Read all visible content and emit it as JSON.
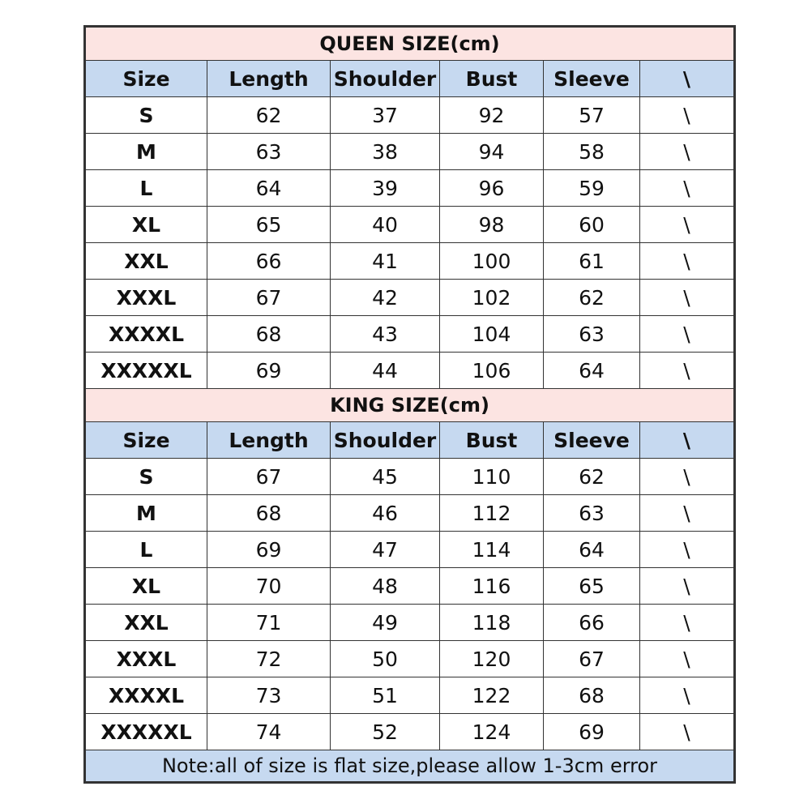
{
  "colors": {
    "title_bg": "#fce4e2",
    "header_bg": "#c6d9f0",
    "border": "#333333"
  },
  "columns": [
    "Size",
    "Length",
    "Shoulder",
    "Bust",
    "Sleeve",
    "\\"
  ],
  "sections": [
    {
      "title": "QUEEN SIZE(cm)",
      "rows": [
        [
          "S",
          "62",
          "37",
          "92",
          "57",
          "\\"
        ],
        [
          "M",
          "63",
          "38",
          "94",
          "58",
          "\\"
        ],
        [
          "L",
          "64",
          "39",
          "96",
          "59",
          "\\"
        ],
        [
          "XL",
          "65",
          "40",
          "98",
          "60",
          "\\"
        ],
        [
          "XXL",
          "66",
          "41",
          "100",
          "61",
          "\\"
        ],
        [
          "XXXL",
          "67",
          "42",
          "102",
          "62",
          "\\"
        ],
        [
          "XXXXL",
          "68",
          "43",
          "104",
          "63",
          "\\"
        ],
        [
          "XXXXXL",
          "69",
          "44",
          "106",
          "64",
          "\\"
        ]
      ]
    },
    {
      "title": "KING SIZE(cm)",
      "rows": [
        [
          "S",
          "67",
          "45",
          "110",
          "62",
          "\\"
        ],
        [
          "M",
          "68",
          "46",
          "112",
          "63",
          "\\"
        ],
        [
          "L",
          "69",
          "47",
          "114",
          "64",
          "\\"
        ],
        [
          "XL",
          "70",
          "48",
          "116",
          "65",
          "\\"
        ],
        [
          "XXL",
          "71",
          "49",
          "118",
          "66",
          "\\"
        ],
        [
          "XXXL",
          "72",
          "50",
          "120",
          "67",
          "\\"
        ],
        [
          "XXXXL",
          "73",
          "51",
          "122",
          "68",
          "\\"
        ],
        [
          "XXXXXL",
          "74",
          "52",
          "124",
          "69",
          "\\"
        ]
      ]
    }
  ],
  "note": "Note:all of size is flat size,please allow 1-3cm error"
}
